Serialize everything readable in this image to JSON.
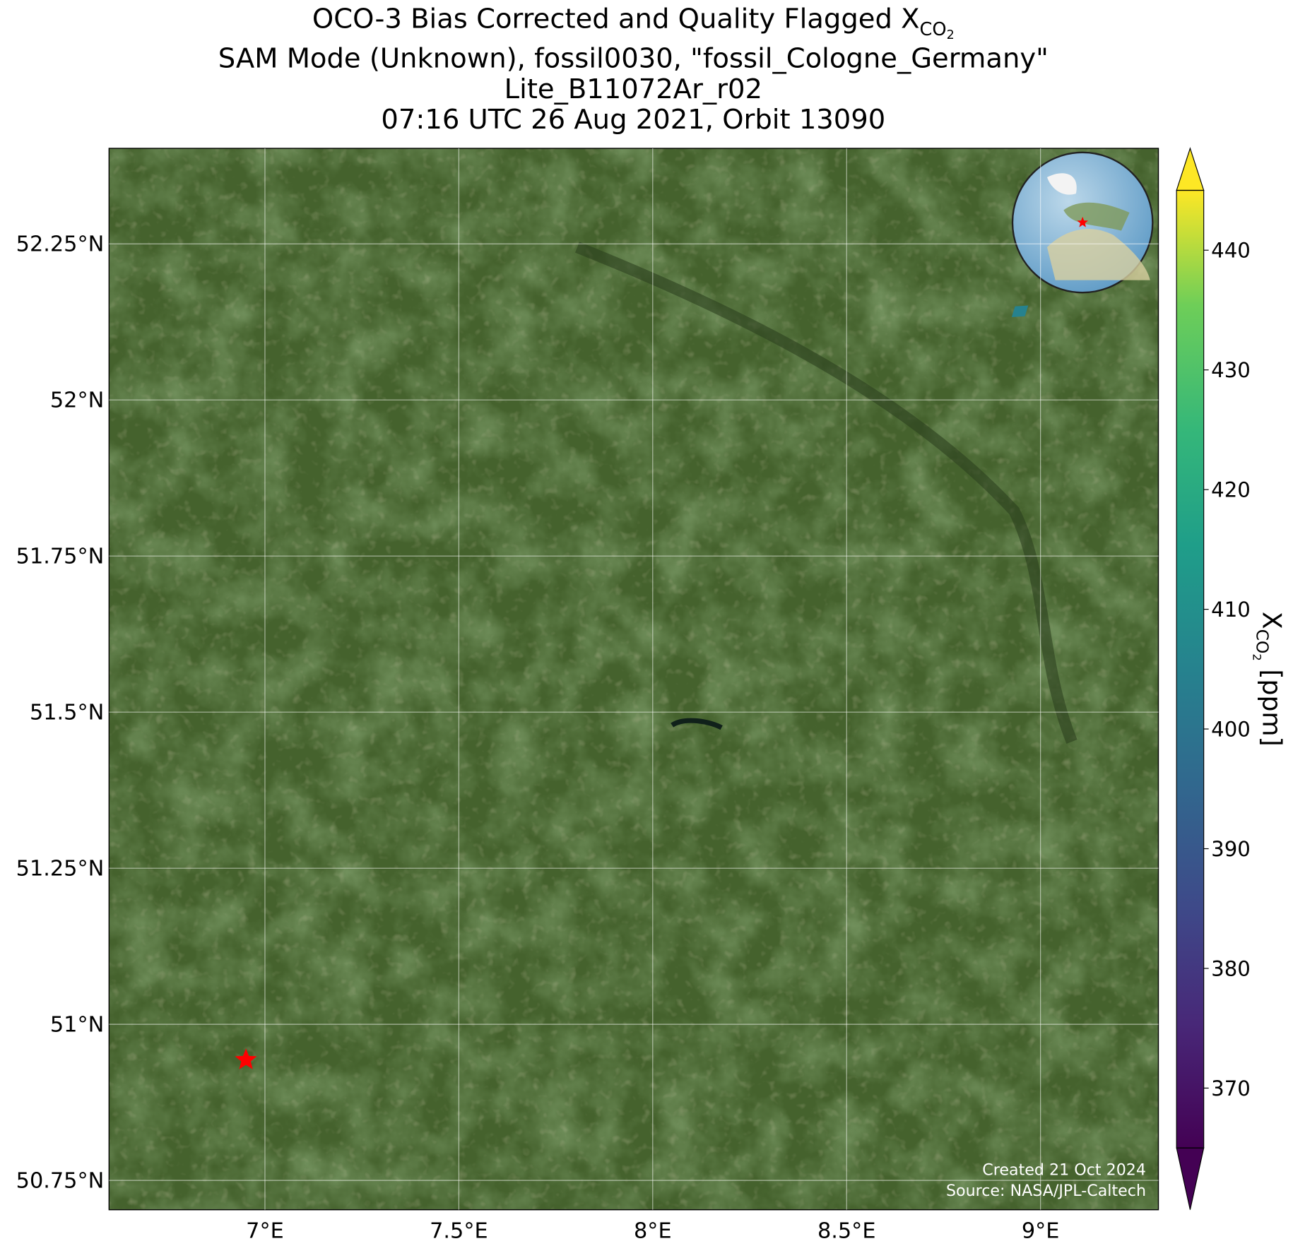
{
  "chart_data": {
    "type": "map",
    "title": {
      "main": "OCO-3 Bias Corrected and Quality Flagged X",
      "subscript": "CO",
      "subsubscript": "2"
    },
    "subtitle_lines": [
      "SAM Mode (Unknown), fossil0030, \"fossil_Cologne_Germany\"",
      "Lite_B11072Ar_r02",
      "07:16 UTC 26 Aug 2021, Orbit 13090"
    ],
    "xlim": [
      6.598,
      9.304
    ],
    "ylim": [
      50.703,
      52.403
    ],
    "xticks": [
      {
        "value": 7,
        "label": "7°E"
      },
      {
        "value": 7.5,
        "label": "7.5°E"
      },
      {
        "value": 8,
        "label": "8°E"
      },
      {
        "value": 8.5,
        "label": "8.5°E"
      },
      {
        "value": 9,
        "label": "9°E"
      }
    ],
    "yticks": [
      {
        "value": 50.75,
        "label": "50.75°N"
      },
      {
        "value": 51,
        "label": "51°N"
      },
      {
        "value": 51.25,
        "label": "51.25°N"
      },
      {
        "value": 51.5,
        "label": "51.5°N"
      },
      {
        "value": 51.75,
        "label": "51.75°N"
      },
      {
        "value": 52,
        "label": "52°N"
      },
      {
        "value": 52.25,
        "label": "52.25°N"
      }
    ],
    "grid": true,
    "site": {
      "lon": 6.951,
      "lat": 50.943,
      "color": "#ff0000"
    },
    "soundings": [
      {
        "lon": 8.947,
        "lat": 52.142,
        "xco2": 405
      }
    ],
    "colorbar": {
      "label": "X",
      "label_subscript": "CO",
      "label_subsubscript": "2",
      "label_unit": "[ppm]",
      "clim": [
        365,
        445
      ],
      "ticks": [
        370,
        380,
        390,
        400,
        410,
        420,
        430,
        440
      ]
    },
    "annotations": [
      "Created 21 Oct 2024",
      "Source: NASA/JPL-Caltech"
    ]
  }
}
